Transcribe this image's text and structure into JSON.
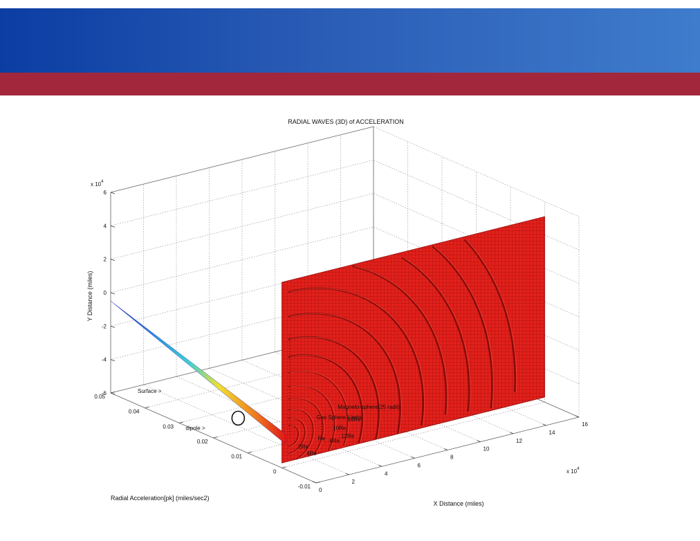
{
  "colors": {
    "header_blue_start": "#0b3da3",
    "header_blue_end": "#3f7ccc",
    "header_red": "#a3273c",
    "surface": "#e01a16",
    "surface_dark": "#8a0c0a",
    "grid": "#7a7a7a"
  },
  "chart_data": {
    "type": "3d-surface",
    "title": "RADIAL WAVES (3D) of ACCELERATION",
    "xlabel": "X Distance (miles)",
    "ylabel": "Y Distance (miles)",
    "zlabel": "Radial Acceleration[pk] (miles/sec2)",
    "x_exponent": "x 10",
    "x_exponent_power": "4",
    "y_exponent": "x 10",
    "y_exponent_power": "4",
    "xlim": [
      0,
      16
    ],
    "ylim": [
      -6,
      6
    ],
    "zlim": [
      -0.01,
      0.05
    ],
    "x_ticks": [
      "0",
      "2",
      "4",
      "6",
      "8",
      "10",
      "12",
      "14",
      "16"
    ],
    "y_ticks": [
      "-6",
      "-4",
      "-2",
      "0",
      "2",
      "4",
      "6"
    ],
    "z_ticks": [
      "-0.01",
      "0",
      "0.01",
      "0.02",
      "0.03",
      "0.04",
      "0.05"
    ],
    "grid": true,
    "colormap": "jet",
    "annotations": [
      {
        "label": "Surface >"
      },
      {
        "label": "dipole >"
      },
      {
        "label": "2Re"
      },
      {
        "label": "4Re"
      },
      {
        "label": "Re"
      },
      {
        "label": "6Re"
      },
      {
        "label": "10Re"
      },
      {
        "label": "12Re"
      },
      {
        "label": "14Re"
      },
      {
        "label": "Gas Sphere Limits"
      },
      {
        "label": "Magneto-sphere(25 radii)"
      }
    ]
  }
}
